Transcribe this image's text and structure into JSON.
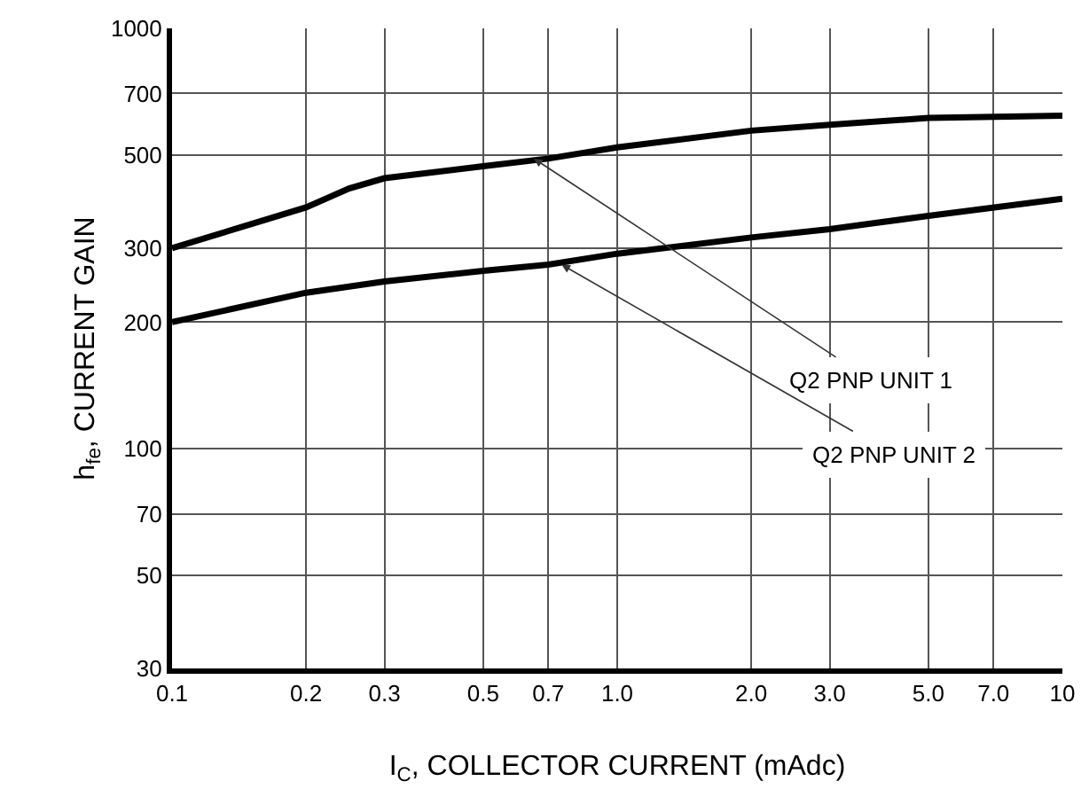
{
  "chart_data": {
    "type": "line",
    "xlabel": "I$_{C}$, COLLECTOR CURRENT (mAdc)",
    "ylabel": "h$_{fe}$, CURRENT GAIN",
    "log": "xy",
    "grid": true,
    "marker": "none",
    "line_style": "solid",
    "xlim": [
      0.1,
      10
    ],
    "xticks": [
      0.1,
      0.2,
      0.3,
      0.5,
      0.7,
      {
        "value": 1,
        "label": "1.0"
      },
      {
        "value": 2,
        "label": "2.0"
      },
      {
        "value": 3,
        "label": "3.0"
      },
      {
        "value": 5,
        "label": "5.0"
      },
      {
        "value": 7,
        "label": "7.0"
      },
      10
    ],
    "ylim": [
      30,
      1000
    ],
    "yticks": [
      30,
      50,
      70,
      100,
      200,
      300,
      500,
      700,
      1000
    ],
    "x": [
      0.1,
      0.2,
      0.25,
      0.3,
      0.5,
      0.7,
      1,
      2,
      3,
      5,
      10
    ],
    "series": [
      {
        "color": "#000000",
        "values": [
          300,
          375,
          416,
          440,
          470,
          490,
          521,
          571,
          590,
          612,
          620
        ]
      },
      {
        "color": "#000000",
        "values": [
          200,
          235,
          243,
          250,
          265,
          274,
          291,
          318,
          333,
          358,
          393
        ]
      }
    ],
    "annotations": [
      {
        "text": "Q2 PNP UNIT 1",
        "x": 0.65,
        "y": 490
      },
      {
        "text": "Q2 PNP UNIT 2",
        "x": 0.75,
        "y": 274
      }
    ]
  }
}
